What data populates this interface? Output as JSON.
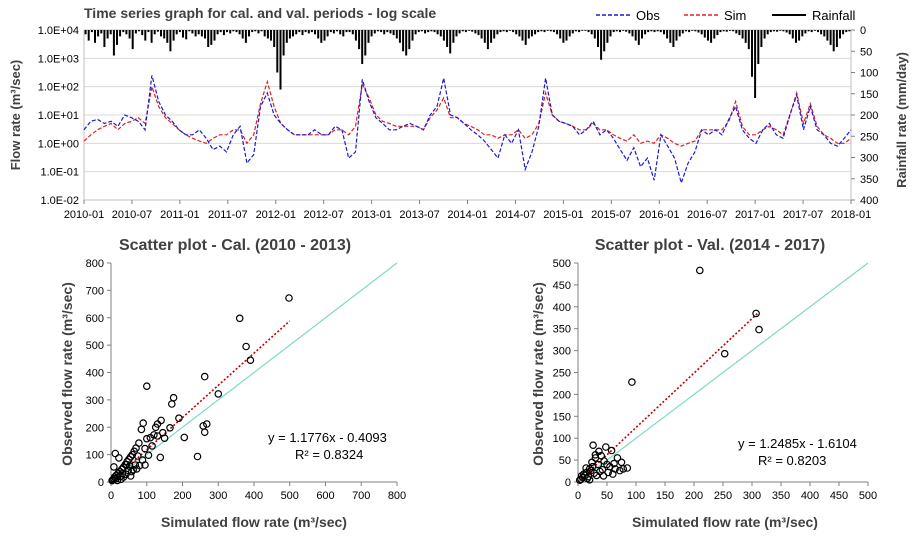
{
  "chart_data": [
    {
      "type": "line",
      "title": "Time series graph for cal. and val. periods - log scale",
      "xlabel": "",
      "ylabel": "Flow rate (m³/sec)",
      "y2label": "Rainfall rate (mm/day)",
      "yscale": "log",
      "ylim": [
        0.01,
        10000
      ],
      "y2lim": [
        0,
        400
      ],
      "y2_inverted": true,
      "yticks": [
        "1.0E+04",
        "1.0E+03",
        "1.0E+02",
        "1.0E+01",
        "1.0E+00",
        "1.0E-01",
        "1.0E-02"
      ],
      "y2ticks": [
        "0",
        "50",
        "100",
        "150",
        "200",
        "250",
        "300",
        "350",
        "400"
      ],
      "xticks": [
        "2010-01",
        "2010-07",
        "2011-01",
        "2011-07",
        "2012-01",
        "2012-07",
        "2013-01",
        "2013-07",
        "2014-01",
        "2014-07",
        "2015-01",
        "2015-07",
        "2016-01",
        "2016-07",
        "2017-01",
        "2017-07",
        "2018-01"
      ],
      "legend": [
        "Obs",
        "Sim",
        "Rainfall"
      ],
      "series": [
        {
          "name": "Obs",
          "color": "#1a1adb",
          "style": "dashed",
          "values": [
            3,
            6,
            7,
            5,
            6,
            4,
            10,
            8,
            6,
            3,
            250,
            30,
            10,
            6,
            3,
            2,
            2,
            3,
            1.5,
            0.6,
            0.8,
            0.5,
            2,
            4,
            0.2,
            0.4,
            20,
            60,
            10,
            5,
            3,
            2,
            2,
            2,
            3,
            2,
            2,
            4,
            3,
            0.3,
            0.5,
            180,
            30,
            8,
            5,
            3,
            3,
            4,
            5,
            4,
            3,
            10,
            20,
            200,
            10,
            8,
            5,
            3,
            2,
            1.2,
            0.6,
            0.3,
            2,
            1,
            3,
            0.12,
            0.5,
            4,
            200,
            10,
            6,
            5,
            4,
            2,
            3,
            6,
            2,
            3,
            1.5,
            0.6,
            0.25,
            0.7,
            0.15,
            0.3,
            0.05,
            2,
            0.8,
            0.3,
            0.04,
            0.2,
            0.5,
            3,
            2,
            3,
            2,
            7,
            20,
            3,
            1.5,
            1,
            3,
            5,
            2,
            1.5,
            10,
            50,
            3,
            20,
            3,
            2,
            1,
            0.8,
            1.5,
            3
          ]
        },
        {
          "name": "Sim",
          "color": "#e02020",
          "style": "dashed",
          "values": [
            1.2,
            2,
            3,
            4,
            5,
            3,
            5,
            6,
            8,
            5,
            100,
            20,
            8,
            5,
            3,
            2,
            1.5,
            1.2,
            1,
            1.5,
            2,
            2,
            3,
            3,
            1,
            2,
            25,
            150,
            20,
            5,
            3,
            2,
            2,
            2,
            2,
            2,
            2,
            3,
            3,
            2,
            4,
            120,
            40,
            10,
            6,
            5,
            4,
            4,
            4,
            4,
            3,
            8,
            15,
            40,
            8,
            8,
            5,
            4,
            3,
            2,
            2,
            1.5,
            2,
            2,
            3,
            1.5,
            2,
            5,
            60,
            10,
            6,
            5,
            4,
            3,
            3,
            5,
            3,
            3,
            2,
            1.5,
            1.2,
            2,
            1,
            1.2,
            1,
            2,
            1.5,
            1,
            0.8,
            1,
            1.2,
            3,
            3,
            3,
            3,
            6,
            30,
            4,
            2,
            2,
            3,
            4,
            3,
            2,
            10,
            60,
            5,
            25,
            4,
            2,
            1.5,
            1,
            1,
            1.5
          ]
        },
        {
          "name": "Rainfall",
          "color": "#000000",
          "style": "bars",
          "x_start": "2010-01",
          "x_end": "2018-01",
          "values": [
            10,
            25,
            5,
            30,
            15,
            8,
            40,
            20,
            10,
            60,
            35,
            15,
            5,
            10,
            20,
            45,
            8,
            3,
            12,
            25,
            5,
            30,
            10,
            4,
            15,
            20,
            30,
            50,
            25,
            10,
            5,
            18,
            22,
            3,
            8,
            15,
            10,
            15,
            20,
            40,
            35,
            25,
            10,
            5,
            12,
            5,
            8,
            3,
            5,
            10,
            20,
            30,
            15,
            5,
            3,
            8,
            3,
            15,
            20,
            25,
            40,
            100,
            140,
            60,
            30,
            20,
            15,
            10,
            5,
            12,
            5,
            8,
            5,
            10,
            20,
            30,
            25,
            15,
            5,
            8,
            3,
            10,
            15,
            5,
            5,
            10,
            25,
            45,
            80,
            60,
            30,
            15,
            8,
            3,
            5,
            10,
            5,
            8,
            12,
            20,
            30,
            50,
            60,
            45,
            25,
            10,
            5,
            3,
            8,
            5,
            3,
            5,
            10,
            15,
            25,
            40,
            55,
            30,
            15,
            8,
            3,
            5,
            2,
            4,
            8,
            12,
            20,
            30,
            45,
            30,
            20,
            10,
            5,
            3,
            5,
            2,
            5,
            10,
            15,
            25,
            35,
            20,
            15,
            10,
            5,
            3,
            5,
            2,
            3,
            5,
            10,
            20,
            30,
            25,
            15,
            8,
            3,
            5,
            2,
            2,
            5,
            10,
            20,
            40,
            70,
            50,
            30,
            15,
            5,
            3,
            5,
            2,
            4,
            8,
            15,
            25,
            35,
            20,
            10,
            5,
            3,
            5,
            3,
            5,
            10,
            20,
            30,
            40,
            25,
            15,
            8,
            3,
            5,
            2,
            3,
            6,
            10,
            18,
            25,
            30,
            20,
            12,
            5,
            3,
            4,
            2,
            3,
            8,
            12,
            20,
            30,
            45,
            110,
            160,
            80,
            40,
            20,
            10,
            5,
            3,
            4,
            2,
            3,
            6,
            10,
            20,
            30,
            25,
            15,
            8,
            3,
            5,
            2,
            5,
            10,
            15,
            25,
            35,
            50,
            40,
            20,
            10,
            5,
            3
          ]
        }
      ]
    },
    {
      "type": "scatter",
      "title": "Scatter plot - Cal. (2010 - 2013)",
      "xlabel": "Simulated flow rate (m³/sec)",
      "ylabel": "Observed flow rate (m³/sec)",
      "xlim": [
        0,
        800
      ],
      "ylim": [
        0,
        800
      ],
      "xticks": [
        "0",
        "100",
        "200",
        "300",
        "400",
        "500",
        "600",
        "700",
        "800"
      ],
      "yticks": [
        "0",
        "100",
        "200",
        "300",
        "400",
        "500",
        "600",
        "700",
        "800"
      ],
      "equation": "y = 1.1776x - 0.4093",
      "r2": "R² = 0.8324",
      "trendline": {
        "slope": 1.1776,
        "intercept": -0.4093,
        "x_range": [
          0,
          500
        ]
      },
      "one_to_one_line": true,
      "points": [
        [
          498,
          672
        ],
        [
          360,
          598
        ],
        [
          378,
          495
        ],
        [
          390,
          445
        ],
        [
          300,
          322
        ],
        [
          262,
          385
        ],
        [
          262,
          182
        ],
        [
          258,
          205
        ],
        [
          268,
          212
        ],
        [
          242,
          93
        ],
        [
          100,
          350
        ],
        [
          175,
          308
        ],
        [
          170,
          285
        ],
        [
          190,
          233
        ],
        [
          165,
          198
        ],
        [
          205,
          163
        ],
        [
          140,
          225
        ],
        [
          130,
          212
        ],
        [
          125,
          200
        ],
        [
          145,
          180
        ],
        [
          120,
          172
        ],
        [
          110,
          162
        ],
        [
          100,
          158
        ],
        [
          90,
          215
        ],
        [
          85,
          192
        ],
        [
          78,
          142
        ],
        [
          70,
          124
        ],
        [
          65,
          112
        ],
        [
          60,
          100
        ],
        [
          55,
          92
        ],
        [
          50,
          83
        ],
        [
          45,
          74
        ],
        [
          40,
          64
        ],
        [
          35,
          54
        ],
        [
          30,
          46
        ],
        [
          25,
          38
        ],
        [
          20,
          32
        ],
        [
          15,
          25
        ],
        [
          10,
          18
        ],
        [
          8,
          12
        ],
        [
          5,
          8
        ],
        [
          3,
          5
        ],
        [
          12,
          104
        ],
        [
          8,
          55
        ],
        [
          22,
          88
        ],
        [
          44,
          64
        ],
        [
          48,
          42
        ],
        [
          58,
          38
        ],
        [
          68,
          62
        ],
        [
          75,
          95
        ],
        [
          80,
          60
        ],
        [
          95,
          122
        ],
        [
          105,
          98
        ],
        [
          115,
          132
        ],
        [
          130,
          168
        ],
        [
          138,
          90
        ],
        [
          150,
          160
        ],
        [
          95,
          62
        ],
        [
          55,
          22
        ],
        [
          35,
          18
        ],
        [
          28,
          10
        ],
        [
          18,
          6
        ],
        [
          62,
          45
        ],
        [
          72,
          48
        ],
        [
          88,
          80
        ],
        [
          42,
          28
        ],
        [
          52,
          58
        ],
        [
          32,
          30
        ],
        [
          26,
          20
        ],
        [
          14,
          12
        ]
      ]
    },
    {
      "type": "scatter",
      "title": "Scatter plot - Val. (2014 - 2017)",
      "xlabel": "Simulated flow rate (m³/sec)",
      "ylabel": "Observed flow rate (m³/sec)",
      "xlim": [
        0,
        500
      ],
      "ylim": [
        0,
        500
      ],
      "xticks": [
        "0",
        "50",
        "100",
        "150",
        "200",
        "250",
        "300",
        "350",
        "400",
        "450",
        "500"
      ],
      "yticks": [
        "0",
        "50",
        "100",
        "150",
        "200",
        "250",
        "300",
        "350",
        "400",
        "450",
        "500"
      ],
      "equation": "y = 1.2485x - 1.6104",
      "r2": "R² = 0.8203",
      "trendline": {
        "slope": 1.2485,
        "intercept": -1.6104,
        "x_range": [
          0,
          310
        ]
      },
      "one_to_one_line": true,
      "points": [
        [
          210,
          483
        ],
        [
          307,
          385
        ],
        [
          312,
          348
        ],
        [
          253,
          293
        ],
        [
          93,
          228
        ],
        [
          58,
          72
        ],
        [
          45,
          48
        ],
        [
          62,
          42
        ],
        [
          48,
          80
        ],
        [
          75,
          45
        ],
        [
          78,
          30
        ],
        [
          85,
          32
        ],
        [
          68,
          55
        ],
        [
          55,
          35
        ],
        [
          40,
          60
        ],
        [
          35,
          40
        ],
        [
          30,
          55
        ],
        [
          25,
          35
        ],
        [
          20,
          30
        ],
        [
          15,
          22
        ],
        [
          12,
          15
        ],
        [
          8,
          10
        ],
        [
          5,
          6
        ],
        [
          3,
          4
        ],
        [
          10,
          18
        ],
        [
          18,
          12
        ],
        [
          22,
          26
        ],
        [
          28,
          20
        ],
        [
          32,
          15
        ],
        [
          38,
          24
        ],
        [
          42,
          28
        ],
        [
          52,
          22
        ],
        [
          60,
          18
        ],
        [
          16,
          8
        ],
        [
          24,
          45
        ],
        [
          14,
          32
        ],
        [
          6,
          14
        ],
        [
          26,
          84
        ],
        [
          30,
          62
        ],
        [
          36,
          70
        ],
        [
          50,
          40
        ],
        [
          64,
          30
        ],
        [
          72,
          26
        ],
        [
          44,
          14
        ],
        [
          20,
          5
        ]
      ]
    }
  ]
}
